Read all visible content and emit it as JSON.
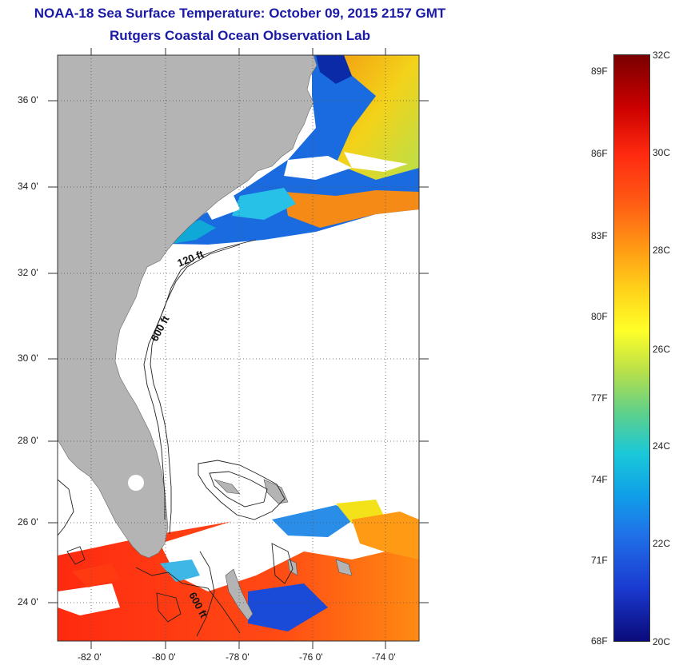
{
  "header": {
    "title": "NOAA-18 Sea Surface Temperature:  October 09, 2015 2157 GMT",
    "subtitle": "Rutgers Coastal Ocean Observation Lab"
  },
  "map": {
    "lat_labels": [
      "36 0'",
      "34 0'",
      "32 0'",
      "30 0'",
      "28 0'",
      "26 0'",
      "24 0'"
    ],
    "lon_labels": [
      "-82 0'",
      "-80 0'",
      "-78 0'",
      "-76 0'",
      "-74 0'"
    ],
    "contours": {
      "shelf": "120 ft",
      "slope_north": "600 ft",
      "slope_south": "600 ft"
    }
  },
  "colorbar": {
    "f_labels": [
      "89F",
      "86F",
      "83F",
      "80F",
      "77F",
      "74F",
      "71F",
      "68F"
    ],
    "c_labels": [
      "32C",
      "30C",
      "28C",
      "26C",
      "24C",
      "22C",
      "20C"
    ],
    "min_c": 20,
    "max_c": 32
  },
  "colors": {
    "land": "#b4b4b4",
    "title": "#1a1aa6"
  }
}
